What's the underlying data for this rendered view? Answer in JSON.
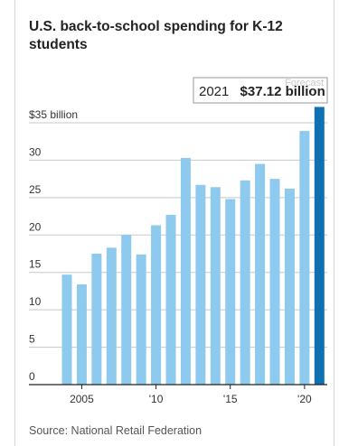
{
  "title": "U.S. back-to-school spending for K-12 students",
  "source": "Source: National Retail Federation",
  "callout": {
    "year": "2021",
    "value": "$37.12 billion",
    "ghost": "Forecast"
  },
  "colors": {
    "bar": "#8ec9ee",
    "highlight": "#0f71b3",
    "grid": "#c8c8c8",
    "axis": "#222222"
  },
  "chart_data": {
    "type": "bar",
    "title": "U.S. back-to-school spending for K-12 students",
    "xlabel": "",
    "ylabel": "",
    "ylim": [
      0,
      37.12
    ],
    "grid": true,
    "categories": [
      2004,
      2005,
      2006,
      2007,
      2008,
      2009,
      2010,
      2011,
      2012,
      2013,
      2014,
      2015,
      2016,
      2017,
      2018,
      2019,
      2020,
      2021
    ],
    "values": [
      14.7,
      13.4,
      17.5,
      18.3,
      20.0,
      17.4,
      21.3,
      22.7,
      30.3,
      26.7,
      26.4,
      24.8,
      27.3,
      29.5,
      27.5,
      26.2,
      33.9,
      37.12
    ],
    "highlight_category": 2021,
    "y_ticks": [
      {
        "value": 0,
        "label": "0"
      },
      {
        "value": 5,
        "label": "5"
      },
      {
        "value": 10,
        "label": "10"
      },
      {
        "value": 15,
        "label": "15"
      },
      {
        "value": 20,
        "label": "20"
      },
      {
        "value": 25,
        "label": "25"
      },
      {
        "value": 30,
        "label": "30"
      },
      {
        "value": 35,
        "label": "$35 billion"
      }
    ],
    "x_ticks": [
      {
        "value": 2005,
        "label": "2005"
      },
      {
        "value": 2010,
        "label": "'10"
      },
      {
        "value": 2015,
        "label": "'15"
      },
      {
        "value": 2020,
        "label": "'20"
      }
    ]
  }
}
